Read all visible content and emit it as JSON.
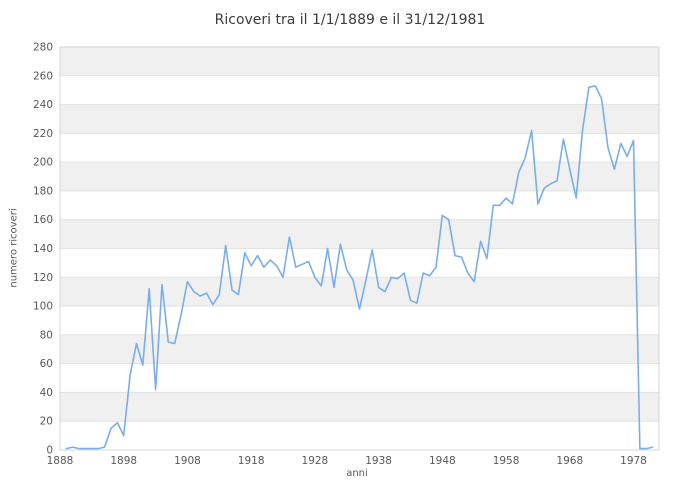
{
  "title": "Ricoveri tra il 1/1/1889 e il 31/12/1981",
  "colors": {
    "background": "#ffffff",
    "band": "#f0f0f0",
    "gridline": "#e2e2e2",
    "plot_border": "#d5d5d5",
    "tick_text": "#595959",
    "title_text": "#3c3c3c",
    "line": "#7aaee8"
  },
  "chart_data": {
    "type": "line",
    "title": "Ricoveri tra il 1/1/1889 e il 31/12/1981",
    "xlabel": "anni",
    "ylabel": "numero ricoveri",
    "xlim": [
      1888,
      1982
    ],
    "ylim": [
      0,
      280
    ],
    "x_ticks": [
      1888,
      1898,
      1908,
      1918,
      1928,
      1938,
      1948,
      1958,
      1968,
      1978
    ],
    "y_ticks": [
      0,
      20,
      40,
      60,
      80,
      100,
      120,
      140,
      160,
      180,
      200,
      220,
      240,
      260,
      280
    ],
    "grid": "horizontal gridlines every 20 with alternating light-gray bands",
    "legend": "none",
    "years": [
      1889,
      1890,
      1891,
      1892,
      1893,
      1894,
      1895,
      1896,
      1897,
      1898,
      1899,
      1900,
      1901,
      1902,
      1903,
      1904,
      1905,
      1906,
      1907,
      1908,
      1909,
      1910,
      1911,
      1912,
      1913,
      1914,
      1915,
      1916,
      1917,
      1918,
      1919,
      1920,
      1921,
      1922,
      1923,
      1924,
      1925,
      1926,
      1927,
      1928,
      1929,
      1930,
      1931,
      1932,
      1933,
      1934,
      1935,
      1936,
      1937,
      1938,
      1939,
      1940,
      1941,
      1942,
      1943,
      1944,
      1945,
      1946,
      1947,
      1948,
      1949,
      1950,
      1951,
      1952,
      1953,
      1954,
      1955,
      1956,
      1957,
      1958,
      1959,
      1960,
      1961,
      1962,
      1963,
      1964,
      1965,
      1966,
      1967,
      1968,
      1969,
      1970,
      1971,
      1972,
      1973,
      1974,
      1975,
      1976,
      1977,
      1978,
      1979,
      1980,
      1981
    ],
    "values": [
      1,
      2,
      1,
      1,
      1,
      1,
      2,
      15,
      19,
      10,
      52,
      74,
      59,
      112,
      42,
      115,
      75,
      74,
      94,
      117,
      110,
      107,
      109,
      101,
      108,
      142,
      111,
      108,
      137,
      128,
      135,
      127,
      132,
      128,
      120,
      148,
      127,
      129,
      131,
      120,
      114,
      140,
      113,
      143,
      125,
      118,
      98,
      118,
      139,
      113,
      110,
      120,
      119,
      123,
      104,
      102,
      123,
      121,
      127,
      163,
      160,
      135,
      134,
      123,
      117,
      145,
      133,
      170,
      170,
      175,
      171,
      193,
      203,
      222,
      171,
      182,
      185,
      187,
      216,
      195,
      175,
      222,
      252,
      253,
      244,
      210,
      195,
      213,
      204,
      215,
      1,
      1,
      2
    ]
  }
}
